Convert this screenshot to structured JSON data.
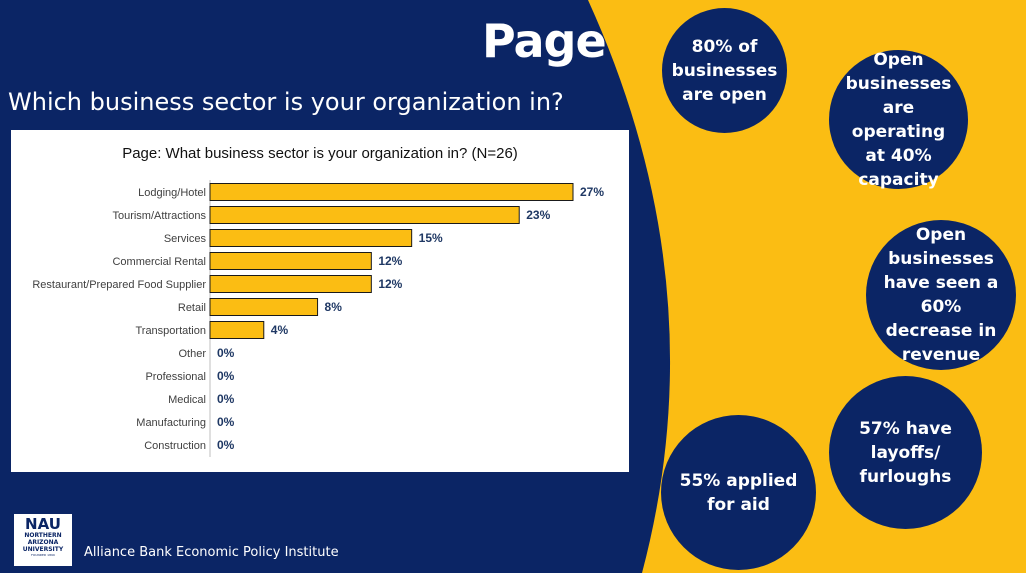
{
  "header": {
    "title": "Page",
    "question": "Which business sector is your organization in?"
  },
  "colors": {
    "navy": "#0b2565",
    "gold": "#fbbd13",
    "bar_fill": "#fbbd13",
    "bar_stroke": "#1a1a1a",
    "label_navy": "#1f3864"
  },
  "chart_data": {
    "type": "bar",
    "orientation": "horizontal",
    "title": "Page: What business sector is your organization in? (N=26)",
    "categories": [
      "Lodging/Hotel",
      "Tourism/Attractions",
      "Services",
      "Commercial Rental",
      "Restaurant/Prepared Food Supplier",
      "Retail",
      "Transportation",
      "Other",
      "Professional",
      "Medical",
      "Manufacturing",
      "Construction"
    ],
    "values": [
      27,
      23,
      15,
      12,
      12,
      8,
      4,
      0,
      0,
      0,
      0,
      0
    ],
    "value_labels": [
      "27%",
      "23%",
      "15%",
      "12%",
      "12%",
      "8%",
      "4%",
      "0%",
      "0%",
      "0%",
      "0%",
      "0%"
    ],
    "unit": "%",
    "xlim": [
      0,
      27
    ],
    "grid": false,
    "legend": "none"
  },
  "stats": [
    {
      "text": "80% of businesses are open"
    },
    {
      "text": "Open businesses are operating at 40% capacity"
    },
    {
      "text": "Open businesses have seen a 60% decrease in revenue"
    },
    {
      "text": "57% have layoffs/ furloughs"
    },
    {
      "text": "55% applied for aid"
    }
  ],
  "footer": {
    "logo_main": "NAU",
    "logo_line1": "NORTHERN",
    "logo_line2": "ARIZONA",
    "logo_line3": "UNIVERSITY",
    "logo_line4": "FOUNDED 1899",
    "institute": "Alliance Bank Economic Policy Institute"
  }
}
